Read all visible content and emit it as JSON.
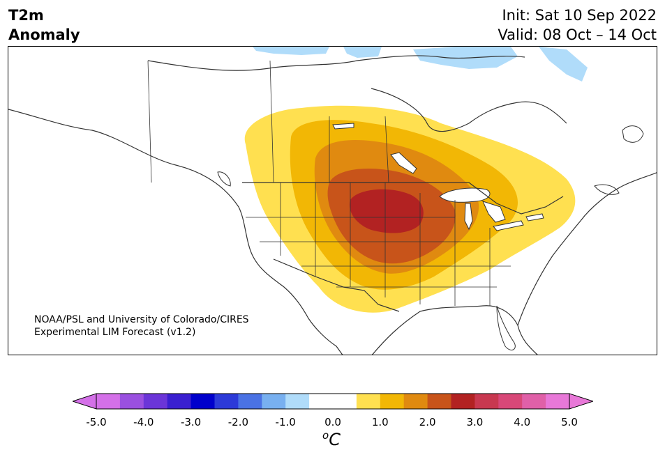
{
  "title": {
    "line1": "T2m",
    "line2": "Anomaly"
  },
  "subtitle": {
    "init": "Init: Sat 10 Sep 2022",
    "valid": "Valid: 08 Oct – 14 Oct"
  },
  "credit": {
    "line1": "NOAA/PSL and University of Colorado/CIRES",
    "line2": "Experimental LIM Forecast (v1.2)"
  },
  "colorbar": {
    "unit_base": "C",
    "unit_sup": "o",
    "ticks": [
      "-5.0",
      "-4.0",
      "-3.0",
      "-2.0",
      "-1.0",
      "0.0",
      "1.0",
      "2.0",
      "3.0",
      "4.0",
      "5.0"
    ],
    "colors": [
      "#d470e8",
      "#9a50e0",
      "#6b35d8",
      "#3a1fd0",
      "#0000cc",
      "#2c3ad8",
      "#4a72e4",
      "#78b0f0",
      "#b0dcfa",
      "#ffffff",
      "#ffffff",
      "#ffe050",
      "#f2b705",
      "#e08a10",
      "#c8541a",
      "#b22222",
      "#c83850",
      "#d84878",
      "#e060a8",
      "#e878d8"
    ],
    "under_color": "#d470e8",
    "over_color": "#e878d8"
  },
  "map": {
    "anomaly_levels": [
      "#ffe050",
      "#f2b705",
      "#e08a10",
      "#c8541a",
      "#b22222"
    ],
    "cold_color": "#b0dcfa",
    "coast_color": "#333333"
  }
}
